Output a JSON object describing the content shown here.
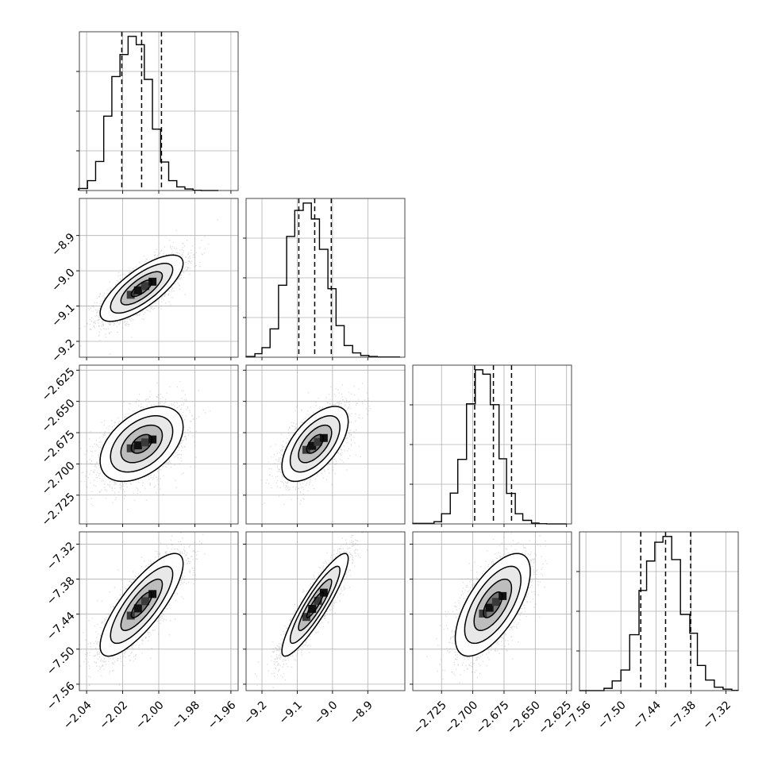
{
  "chart_data": {
    "type": "corner",
    "parameters": [
      {
        "range": [
          -2.044,
          -1.956
        ],
        "ticks": [
          -2.04,
          -2.02,
          -2.0,
          -1.98,
          -1.96
        ],
        "tick_labels": [
          "−2.04",
          "−2.02",
          "−2.00",
          "−1.98",
          "−1.96"
        ],
        "quantiles": [
          -2.0205,
          -2.0095,
          -1.9985
        ],
        "hist_bins": [
          -2.0445,
          -2.0395,
          -2.035,
          -2.0305,
          -2.026,
          -2.0215,
          -2.017,
          -2.0125,
          -2.008,
          -2.0035,
          -1.999,
          -1.9945,
          -1.99,
          -1.9855,
          -1.981,
          -1.9765,
          -1.972,
          -1.967
        ],
        "hist_counts": [
          8,
          38,
          112,
          287,
          440,
          525,
          595,
          563,
          429,
          237,
          110,
          38,
          14,
          6,
          1,
          0,
          0
        ]
      },
      {
        "range": [
          -9.245,
          -8.795
        ],
        "ticks": [
          -9.2,
          -9.1,
          -9.0,
          -8.9
        ],
        "tick_labels": [
          "−9.2",
          "−9.1",
          "−9.0",
          "−8.9"
        ],
        "quantiles": [
          -9.0955,
          -9.0505,
          -9.0035
        ],
        "hist_bins": [
          -9.245,
          -9.22,
          -9.2,
          -9.177,
          -9.153,
          -9.13,
          -9.107,
          -9.083,
          -9.06,
          -9.037,
          -9.013,
          -8.99,
          -8.967,
          -8.943,
          -8.92,
          -8.897,
          -8.873,
          -8.85,
          -8.81
        ],
        "hist_counts": [
          3,
          14,
          38,
          112,
          285,
          478,
          581,
          610,
          547,
          427,
          271,
          125,
          46,
          17,
          7,
          3,
          1,
          1
        ]
      },
      {
        "range": [
          -2.748,
          -2.621
        ],
        "ticks": [
          -2.725,
          -2.7,
          -2.675,
          -2.65,
          -2.625
        ],
        "tick_labels": [
          "−2.725",
          "−2.700",
          "−2.675",
          "−2.650",
          "−2.625"
        ],
        "quantiles": [
          -2.6985,
          -2.6835,
          -2.669
        ],
        "hist_bins": [
          -2.748,
          -2.731,
          -2.725,
          -2.718,
          -2.712,
          -2.705,
          -2.698,
          -2.692,
          -2.686,
          -2.679,
          -2.673,
          -2.666,
          -2.66,
          -2.653,
          -2.647,
          -2.641,
          -2.634,
          -2.625
        ],
        "hist_counts": [
          2,
          8,
          37,
          112,
          235,
          437,
          561,
          545,
          434,
          237,
          111,
          37,
          13,
          3,
          1,
          0,
          0
        ]
      },
      {
        "range": [
          -7.571,
          -7.299
        ],
        "ticks": [
          -7.56,
          -7.5,
          -7.44,
          -7.38,
          -7.32
        ],
        "tick_labels": [
          "−7.56",
          "−7.50",
          "−7.44",
          "−7.38",
          "−7.32"
        ],
        "quantiles": [
          -7.466,
          -7.4235,
          -7.3805
        ],
        "hist_bins": [
          -7.571,
          -7.529,
          -7.515,
          -7.5,
          -7.485,
          -7.469,
          -7.456,
          -7.442,
          -7.428,
          -7.413,
          -7.398,
          -7.382,
          -7.369,
          -7.355,
          -7.34,
          -7.325,
          -7.31,
          -7.299
        ],
        "hist_counts": [
          0,
          8,
          34,
          72,
          196,
          351,
          454,
          520,
          540,
          459,
          267,
          201,
          88,
          37,
          12,
          5,
          1
        ]
      }
    ],
    "pairs": [
      {
        "row": 1,
        "col": 0,
        "mean": [
          -2.0095,
          -9.0495
        ],
        "sd": [
          0.0115,
          0.047
        ],
        "rho": 0.75
      },
      {
        "row": 2,
        "col": 0,
        "mean": [
          -2.0095,
          -2.684
        ],
        "sd": [
          0.0115,
          0.015
        ],
        "rho": 0.45
      },
      {
        "row": 2,
        "col": 1,
        "mean": [
          -9.0495,
          -2.684
        ],
        "sd": [
          0.047,
          0.015
        ],
        "rho": 0.6
      },
      {
        "row": 3,
        "col": 0,
        "mean": [
          -2.0095,
          -7.424
        ],
        "sd": [
          0.0115,
          0.044
        ],
        "rho": 0.8
      },
      {
        "row": 3,
        "col": 1,
        "mean": [
          -9.0495,
          -7.424
        ],
        "sd": [
          0.047,
          0.044
        ],
        "rho": 0.9
      },
      {
        "row": 3,
        "col": 2,
        "mean": [
          -2.684,
          -7.424
        ],
        "sd": [
          0.015,
          0.044
        ],
        "rho": 0.65
      }
    ],
    "contour_levels_sigma": [
      0.5,
      1.0,
      1.5,
      2.0
    ],
    "grid": true,
    "colors": {
      "ink": "#000000",
      "grid": "#b0b0b0",
      "samples": "#9a9a9a"
    }
  }
}
